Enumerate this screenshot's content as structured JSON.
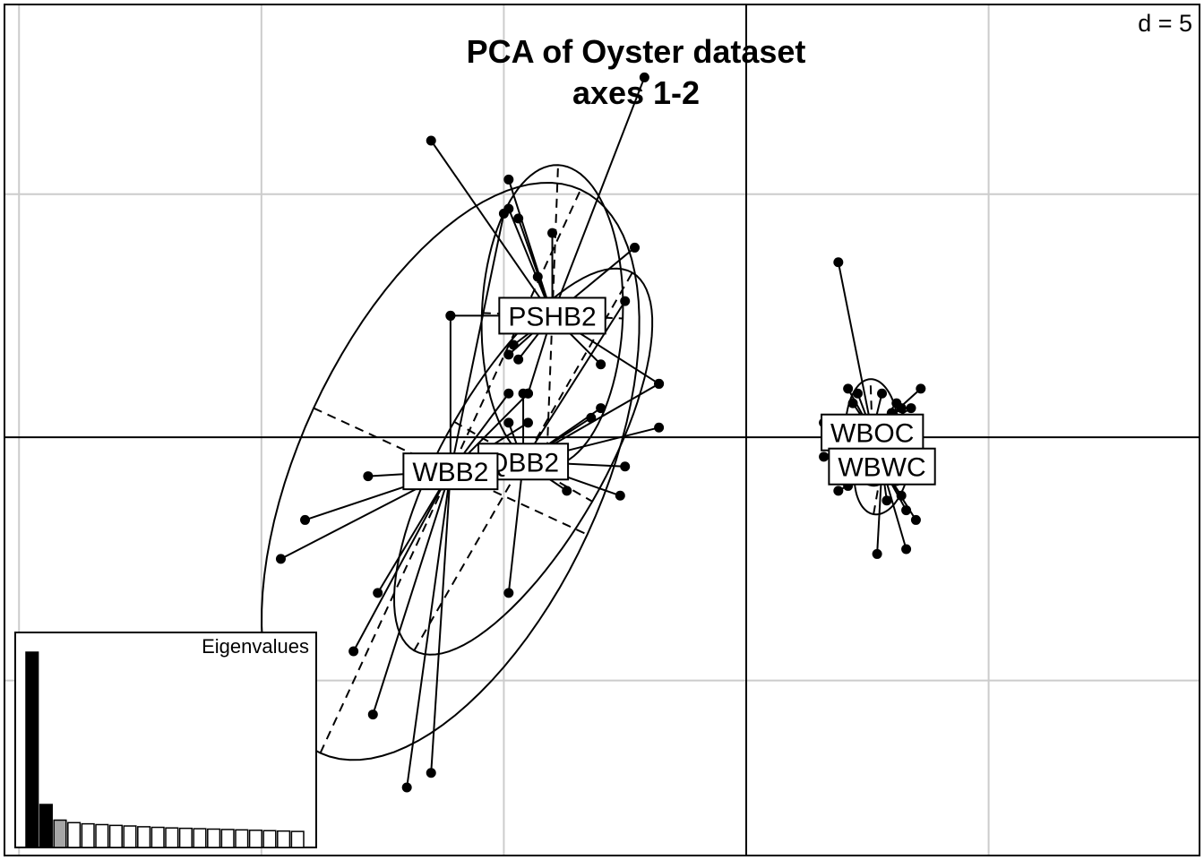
{
  "chart_data": {
    "type": "scatter",
    "title": "PCA of Oyster dataset",
    "subtitle": "axes 1-2",
    "scale_label": "d = 5",
    "axes": {
      "x": 1,
      "y": 2
    },
    "grid": true,
    "grid_spacing": 5,
    "xlim": [
      -15.3,
      9.35
    ],
    "ylim": [
      -8.6,
      8.9
    ],
    "colors": {
      "points": "#000000",
      "grid": "#cccccc",
      "frame": "#000000",
      "ellipse": "#000000"
    },
    "groups": [
      {
        "name": "PSHB2",
        "center": [
          -4.0,
          2.5
        ],
        "points": [
          [
            -2.1,
            7.4
          ],
          [
            -6.5,
            6.1
          ],
          [
            -4.9,
            5.3
          ],
          [
            -4.9,
            4.7
          ],
          [
            -4.7,
            4.5
          ],
          [
            -4.0,
            4.2
          ],
          [
            -2.3,
            3.9
          ],
          [
            -4.3,
            3.3
          ],
          [
            -6.1,
            2.5
          ],
          [
            -4.8,
            1.9
          ],
          [
            -4.9,
            1.7
          ],
          [
            -4.7,
            1.6
          ],
          [
            -3.0,
            1.5
          ],
          [
            -4.5,
            0.9
          ],
          [
            -1.8,
            1.1
          ]
        ],
        "ellipse": {
          "a": 3.11,
          "b": 1.45,
          "angle_deg": -87.8
        }
      },
      {
        "name": "QBB2",
        "center": [
          -4.6,
          -0.5
        ],
        "points": [
          [
            -2.5,
            2.8
          ],
          [
            -1.8,
            1.1
          ],
          [
            -3.0,
            0.6
          ],
          [
            -1.8,
            0.2
          ],
          [
            -3.2,
            0.4
          ],
          [
            -4.9,
            0.3
          ],
          [
            -2.5,
            -0.6
          ],
          [
            -2.6,
            -1.2
          ],
          [
            -3.7,
            -1.1
          ],
          [
            -4.9,
            -3.2
          ],
          [
            -4.6,
            0.9
          ]
        ],
        "ellipse": {
          "a": 4.5,
          "b": 1.64,
          "angle_deg": -60.0
        }
      },
      {
        "name": "WBB2",
        "center": [
          -6.1,
          -0.7
        ],
        "points": [
          [
            -6.1,
            2.5
          ],
          [
            -5.0,
            4.6
          ],
          [
            -7.8,
            -0.8
          ],
          [
            -9.1,
            -1.7
          ],
          [
            -9.6,
            -2.5
          ],
          [
            -7.6,
            -3.2
          ],
          [
            -8.1,
            -4.4
          ],
          [
            -7.7,
            -5.7
          ],
          [
            -7.0,
            -7.2
          ],
          [
            -6.5,
            -6.9
          ],
          [
            -4.9,
            0.9
          ],
          [
            -4.5,
            0.9
          ],
          [
            -4.5,
            0.3
          ]
        ],
        "ellipse": {
          "a": 6.4,
          "b": 3.1,
          "angle_deg": -65.2
        }
      },
      {
        "name": "WBOC",
        "center": [
          2.6,
          0.1
        ],
        "points": [
          [
            1.9,
            3.6
          ],
          [
            2.1,
            1.0
          ],
          [
            2.3,
            0.9
          ],
          [
            2.8,
            0.9
          ],
          [
            3.1,
            0.7
          ],
          [
            3.2,
            0.6
          ],
          [
            3.6,
            1.0
          ],
          [
            3.4,
            0.6
          ],
          [
            3.0,
            0.5
          ],
          [
            2.2,
            0.7
          ],
          [
            1.6,
            0.3
          ],
          [
            1.9,
            -0.2
          ],
          [
            1.6,
            -0.4
          ]
        ],
        "ellipse": {
          "a": 1.1,
          "b": 0.55,
          "angle_deg": -92.0
        }
      },
      {
        "name": "WBWC",
        "center": [
          2.8,
          -0.6
        ],
        "points": [
          [
            2.7,
            -2.4
          ],
          [
            3.3,
            -2.3
          ],
          [
            3.5,
            -1.7
          ],
          [
            3.3,
            -1.5
          ],
          [
            1.9,
            -1.1
          ],
          [
            2.1,
            -1.0
          ],
          [
            3.2,
            -1.2
          ],
          [
            2.9,
            -1.3
          ],
          [
            3.1,
            -0.9
          ],
          [
            3.0,
            -0.8
          ],
          [
            3.3,
            -0.7
          ]
        ],
        "ellipse": {
          "a": 1.0,
          "b": 0.55,
          "angle_deg": -80.0
        }
      }
    ],
    "eigenvalues": {
      "label": "Eigenvalues",
      "values": [
        100,
        22,
        14,
        12.7,
        12.1,
        11.7,
        11.3,
        11.0,
        10.6,
        10.3,
        10.0,
        9.8,
        9.6,
        9.4,
        9.2,
        9.0,
        8.8,
        8.6,
        8.4,
        8.2
      ],
      "fills": [
        "#000000",
        "#000000",
        "#a6a6a6",
        "#ffffff",
        "#ffffff",
        "#ffffff",
        "#ffffff",
        "#ffffff",
        "#ffffff",
        "#ffffff",
        "#ffffff",
        "#ffffff",
        "#ffffff",
        "#ffffff",
        "#ffffff",
        "#ffffff",
        "#ffffff",
        "#ffffff",
        "#ffffff",
        "#ffffff"
      ]
    }
  }
}
